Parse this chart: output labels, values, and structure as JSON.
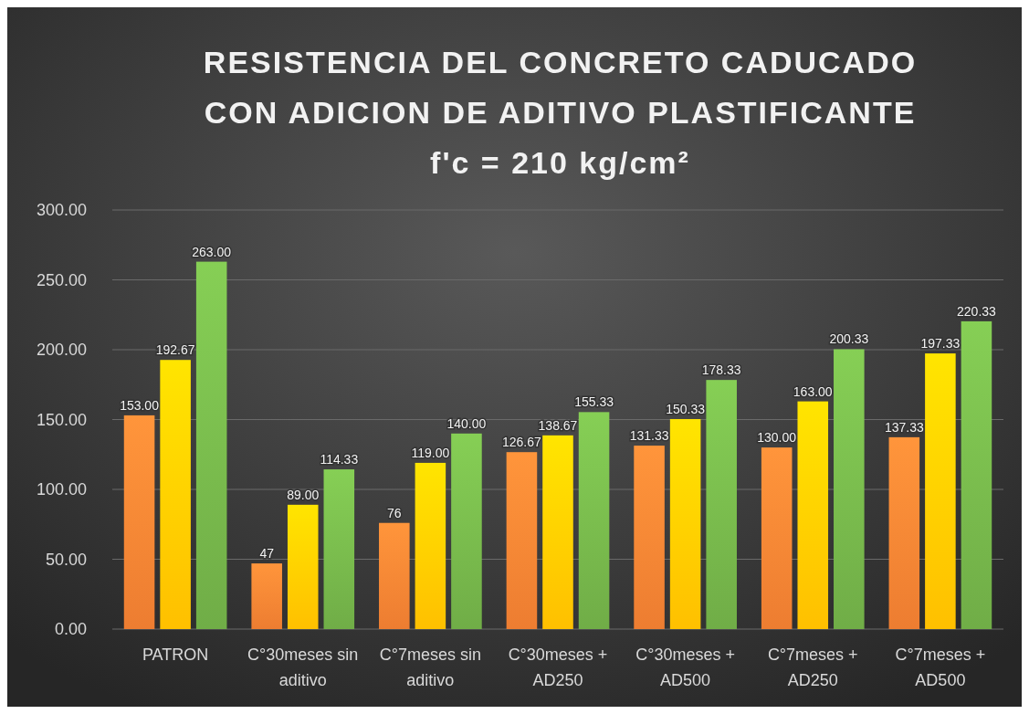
{
  "chart_data": {
    "type": "bar",
    "title": "RESISTENCIA DEL CONCRETO CADUCADO\nCON ADICION DE ADITIVO PLASTIFICANTE\nf'c = 210 kg/cm²",
    "categories": [
      "PATRON",
      "C°30meses sin aditivo",
      "C°7meses sin aditivo",
      "C°30meses + AD250",
      "C°30meses + AD500",
      "C°7meses + AD250",
      "C°7meses + AD500"
    ],
    "series": [
      {
        "color": "#ed7d31",
        "values": [
          153,
          47,
          76,
          126.67,
          131.33,
          130,
          137.33
        ],
        "value_labels": [
          "153.00",
          "47",
          "76",
          "126.67",
          "131.33",
          "130.00",
          "137.33"
        ]
      },
      {
        "color": "#ffc000",
        "values": [
          192.67,
          89,
          119,
          138.67,
          150.33,
          163,
          197.33
        ],
        "value_labels": [
          "192.67",
          "89.00",
          "119.00",
          "138.67",
          "150.33",
          "163.00",
          "197.33"
        ]
      },
      {
        "color": "#70ad47",
        "values": [
          263,
          114.33,
          140,
          155.33,
          178.33,
          200.33,
          220.33
        ],
        "value_labels": [
          "263.00",
          "114.33",
          "140.00",
          "155.33",
          "178.33",
          "200.33",
          "220.33"
        ]
      }
    ],
    "ylim": [
      0,
      300
    ],
    "yticks": [
      {
        "value": 0,
        "label": "0.00"
      },
      {
        "value": 50,
        "label": "50.00"
      },
      {
        "value": 100,
        "label": "100.00"
      },
      {
        "value": 150,
        "label": "150.00"
      },
      {
        "value": 200,
        "label": "200.00"
      },
      {
        "value": 250,
        "label": "250.00"
      },
      {
        "value": 300,
        "label": "300.00"
      }
    ],
    "grid": "y"
  }
}
